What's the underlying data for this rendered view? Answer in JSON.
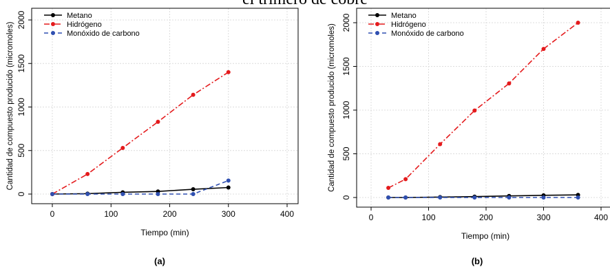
{
  "header": {
    "top_title": "el trímero de cobre"
  },
  "colors": {
    "metano": "#000000",
    "hidrogeno": "#e41a1c",
    "monoxido": "#2f4fb0",
    "grid": "#dcdcdc"
  },
  "legend_labels": {
    "metano": "Metano",
    "hidrogeno": "Hidrógeno",
    "monoxido": "Monóxido de carbono"
  },
  "chart_data": [
    {
      "type": "line",
      "panel_label": "(a)",
      "xlabel": "Tiempo (min)",
      "ylabel": "Cantidad de compuesto producido (micromoles)",
      "xlim": [
        0,
        400
      ],
      "ylim": [
        0,
        2000
      ],
      "xticks": [
        0,
        100,
        200,
        300,
        400
      ],
      "yticks": [
        0,
        500,
        1000,
        1500,
        2000
      ],
      "grid": true,
      "legend_position": "top-left",
      "series": [
        {
          "name": "Metano",
          "color": "#000000",
          "dash": "solid",
          "x": [
            0,
            60,
            120,
            180,
            240,
            300
          ],
          "y": [
            0,
            5,
            20,
            30,
            55,
            75
          ]
        },
        {
          "name": "Hidrógeno",
          "color": "#e41a1c",
          "dash": "dashdot",
          "x": [
            0,
            60,
            120,
            180,
            240,
            300
          ],
          "y": [
            0,
            230,
            530,
            830,
            1140,
            1400
          ]
        },
        {
          "name": "Monóxido de carbono",
          "color": "#2f4fb0",
          "dash": "dashed",
          "x": [
            0,
            60,
            120,
            180,
            240,
            300
          ],
          "y": [
            0,
            0,
            0,
            0,
            0,
            155
          ]
        }
      ]
    },
    {
      "type": "line",
      "panel_label": "(b)",
      "xlabel": "Tiempo (min)",
      "ylabel": "Cantidad de compuesto producido (micromoles)",
      "xlim": [
        0,
        400
      ],
      "ylim": [
        0,
        2000
      ],
      "xticks": [
        0,
        100,
        200,
        300,
        400
      ],
      "yticks": [
        0,
        500,
        1000,
        1500,
        2000
      ],
      "grid": true,
      "legend_position": "top-left",
      "series": [
        {
          "name": "Metano",
          "color": "#000000",
          "dash": "solid",
          "x": [
            30,
            60,
            120,
            180,
            240,
            300,
            360
          ],
          "y": [
            0,
            0,
            5,
            10,
            18,
            25,
            30
          ]
        },
        {
          "name": "Hidrógeno",
          "color": "#e41a1c",
          "dash": "dashdot",
          "x": [
            30,
            60,
            120,
            180,
            240,
            300,
            360
          ],
          "y": [
            110,
            210,
            610,
            995,
            1305,
            1700,
            2000
          ]
        },
        {
          "name": "Monóxido de carbono",
          "color": "#2f4fb0",
          "dash": "dashed",
          "x": [
            30,
            60,
            120,
            180,
            240,
            300,
            360
          ],
          "y": [
            0,
            0,
            0,
            0,
            0,
            0,
            0
          ]
        }
      ]
    }
  ]
}
